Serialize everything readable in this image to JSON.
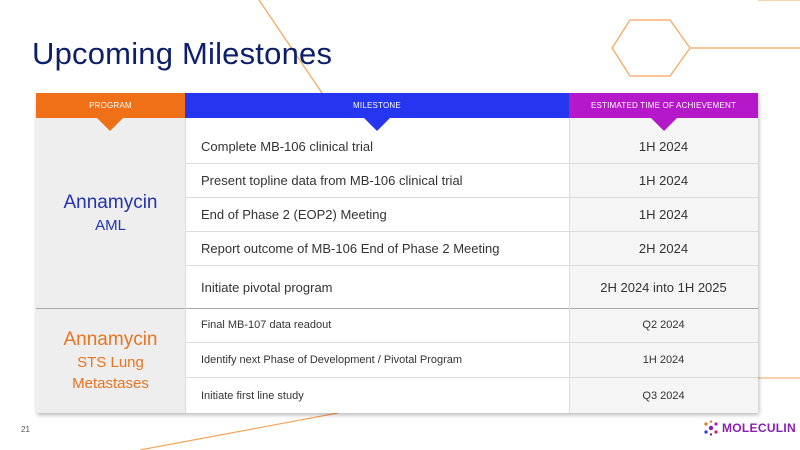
{
  "slide": {
    "title": "Upcoming Milestones",
    "page_number": "21"
  },
  "table": {
    "headers": {
      "program": "PROGRAM",
      "milestone": "MILESTONE",
      "time": "ESTIMATED TIME OF ACHIEVEMENT"
    },
    "groups": [
      {
        "program_name": "Annamycin",
        "program_sub_lines": [
          "AML"
        ],
        "rows": [
          {
            "milestone": "Complete MB-106 clinical trial",
            "time": "1H 2024"
          },
          {
            "milestone": "Present topline data from MB-106 clinical trial",
            "time": "1H 2024"
          },
          {
            "milestone": "End of Phase 2 (EOP2) Meeting",
            "time": "1H 2024"
          },
          {
            "milestone": "Report outcome of MB-106 End of Phase 2 Meeting",
            "time": "2H 2024"
          },
          {
            "milestone": "Initiate pivotal program",
            "time": "2H 2024 into 1H 2025"
          }
        ]
      },
      {
        "program_name": "Annamycin",
        "program_sub_lines": [
          "STS Lung",
          "Metastases"
        ],
        "rows": [
          {
            "milestone": "Final MB-107 data readout",
            "time": "Q2 2024"
          },
          {
            "milestone": "Identify next Phase of Development / Pivotal Program",
            "time": "1H 2024"
          },
          {
            "milestone": "Initiate first line study",
            "time": "Q3 2024"
          }
        ]
      }
    ]
  },
  "logo": {
    "text": "MOLECULIN"
  },
  "colors": {
    "program": "#f07018",
    "milestone": "#2535f0",
    "time": "#b418c8",
    "title": "#0d1e6b"
  }
}
